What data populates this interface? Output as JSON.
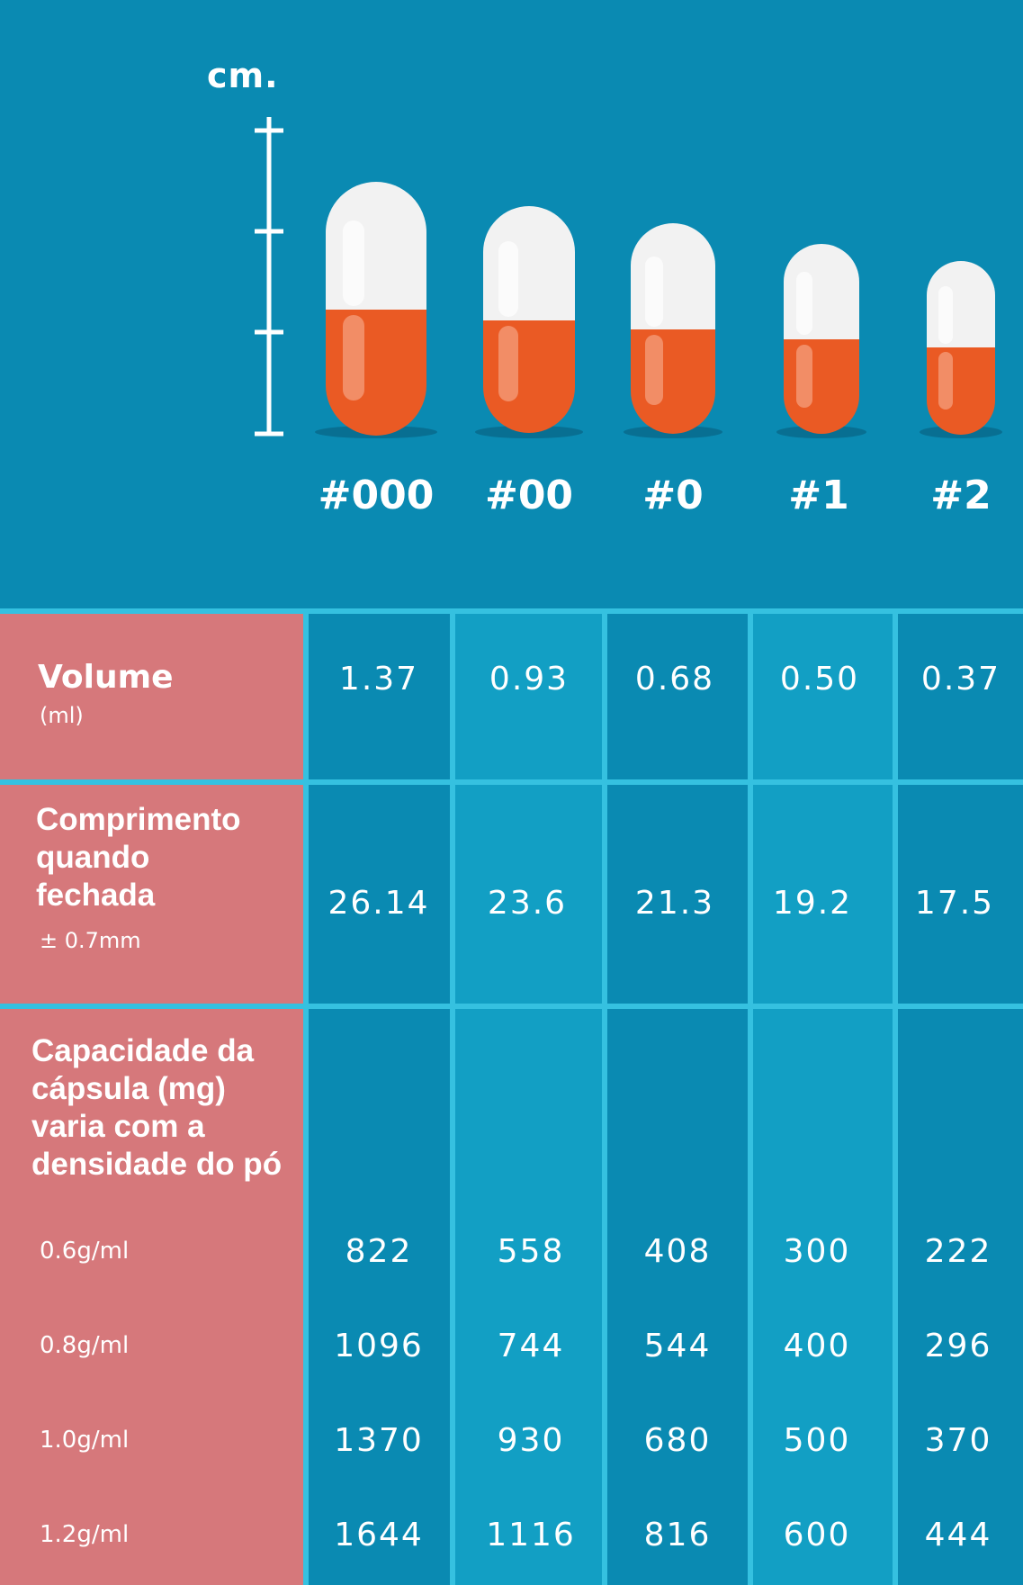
{
  "scale_unit": "cm.",
  "capsule_colors": {
    "cap": "#f2f2f2",
    "body": "#ea5a24",
    "background": "#0a8ab2",
    "grid": "#35c1e0",
    "header_col": "#d6787b"
  },
  "sizes": [
    "#000",
    "#00",
    "#0",
    "#1",
    "#2"
  ],
  "rows": {
    "volume": {
      "title": "Volume",
      "unit": "(ml)",
      "values": [
        "1.37",
        "0.93",
        "0.68",
        "0.50",
        "0.37"
      ]
    },
    "length": {
      "title_lines": [
        "Comprimento",
        "quando",
        "fechada"
      ],
      "tolerance": "± 0.7mm",
      "values": [
        "26.14",
        "23.6",
        "21.3",
        "19.2",
        "17.5"
      ]
    },
    "capacity": {
      "title_lines": [
        "Capacidade da",
        "cápsula (mg)",
        "varia com a",
        "densidade do pó"
      ],
      "densities": [
        {
          "label": "0.6g/ml",
          "values": [
            "822",
            "558",
            "408",
            "300",
            "222"
          ]
        },
        {
          "label": "0.8g/ml",
          "values": [
            "1096",
            "744",
            "544",
            "400",
            "296"
          ]
        },
        {
          "label": "1.0g/ml",
          "values": [
            "1370",
            "930",
            "680",
            "500",
            "370"
          ]
        },
        {
          "label": "1.2g/ml",
          "values": [
            "1644",
            "1116",
            "816",
            "600",
            "444"
          ]
        }
      ]
    }
  }
}
